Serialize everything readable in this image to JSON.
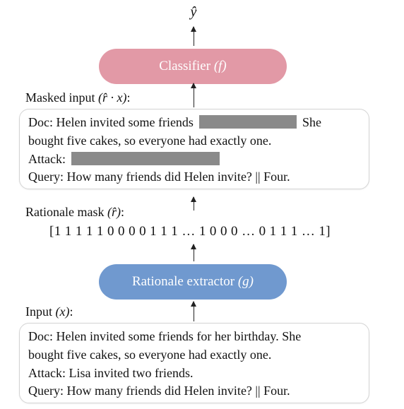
{
  "output": {
    "symbol": "ŷ"
  },
  "classifier": {
    "label": "Classifier",
    "symbol": "(f)"
  },
  "masked_input": {
    "label_text": "Masked input ",
    "label_math": "(r̂ · x)",
    "label_colon": ":",
    "line1_a": "Doc: Helen invited some friends",
    "line1_b": "She",
    "line2": "bought five cakes, so everyone had exactly one.",
    "line3": "Attack:",
    "line4": "Query: How many friends did Helen invite? || Four."
  },
  "rationale_mask": {
    "label_text": "Rationale mask ",
    "label_math": "(r̂)",
    "label_colon": ":",
    "sequence": "[1 1 1 1 1 0 0 0 0 1 1 1 … 1 0 0 0 … 0 1 1 1 … 1]"
  },
  "extractor": {
    "label": "Rationale extractor",
    "symbol": "(g)"
  },
  "input": {
    "label_text": "Input ",
    "label_math": "(x)",
    "label_colon": ":",
    "line1": "Doc: Helen invited some friends for her birthday. She",
    "line2": "bought five cakes, so everyone had exactly one.",
    "line3": "Attack: Lisa invited two friends.",
    "line4": "Query: How many friends did Helen invite? || Four."
  },
  "colors": {
    "classifier_fill": "#e299a6",
    "extractor_fill": "#7099cf",
    "mask_bar": "#8a8a8a"
  }
}
